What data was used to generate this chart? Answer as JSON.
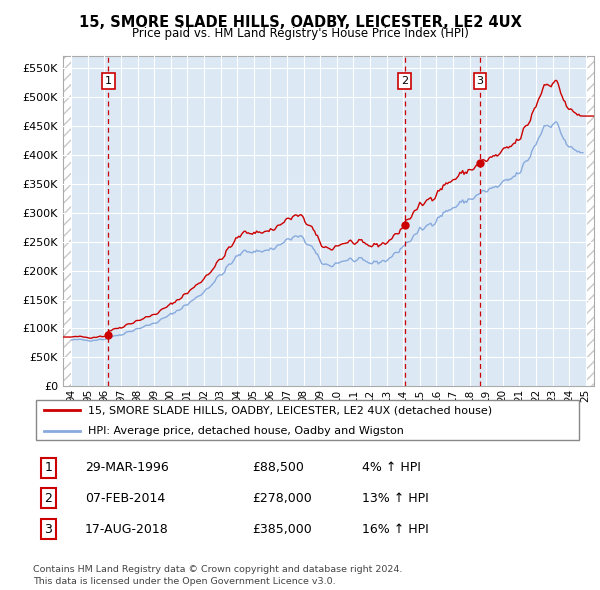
{
  "title": "15, SMORE SLADE HILLS, OADBY, LEICESTER, LE2 4UX",
  "subtitle": "Price paid vs. HM Land Registry's House Price Index (HPI)",
  "legend_label_red": "15, SMORE SLADE HILLS, OADBY, LEICESTER, LE2 4UX (detached house)",
  "legend_label_blue": "HPI: Average price, detached house, Oadby and Wigston",
  "footer_line1": "Contains HM Land Registry data © Crown copyright and database right 2024.",
  "footer_line2": "This data is licensed under the Open Government Licence v3.0.",
  "transactions": [
    {
      "label": "1",
      "date": "29-MAR-1996",
      "price": 88500,
      "hpi_pct": "4%",
      "x_year": 1996.23
    },
    {
      "label": "2",
      "date": "07-FEB-2014",
      "price": 278000,
      "hpi_pct": "13%",
      "x_year": 2014.09
    },
    {
      "label": "3",
      "date": "17-AUG-2018",
      "price": 385000,
      "hpi_pct": "16%",
      "x_year": 2018.62
    }
  ],
  "ylim": [
    0,
    570000
  ],
  "yticks": [
    0,
    50000,
    100000,
    150000,
    200000,
    250000,
    300000,
    350000,
    400000,
    450000,
    500000,
    550000
  ],
  "xlim": [
    1993.5,
    2025.5
  ],
  "xtick_years": [
    1994,
    1995,
    1996,
    1997,
    1998,
    1999,
    2000,
    2001,
    2002,
    2003,
    2004,
    2005,
    2006,
    2007,
    2008,
    2009,
    2010,
    2011,
    2012,
    2013,
    2014,
    2015,
    2016,
    2017,
    2018,
    2019,
    2020,
    2021,
    2022,
    2023,
    2024,
    2025
  ],
  "hatch_color": "#c8c8c8",
  "plot_bg_color": "#dce9f5",
  "grid_color": "#ffffff",
  "red_line_color": "#cc0000",
  "blue_line_color": "#88aadd",
  "dot_color": "#cc0000",
  "transaction_box_edge": "#cc0000",
  "dashed_line_color": "#cc0000"
}
